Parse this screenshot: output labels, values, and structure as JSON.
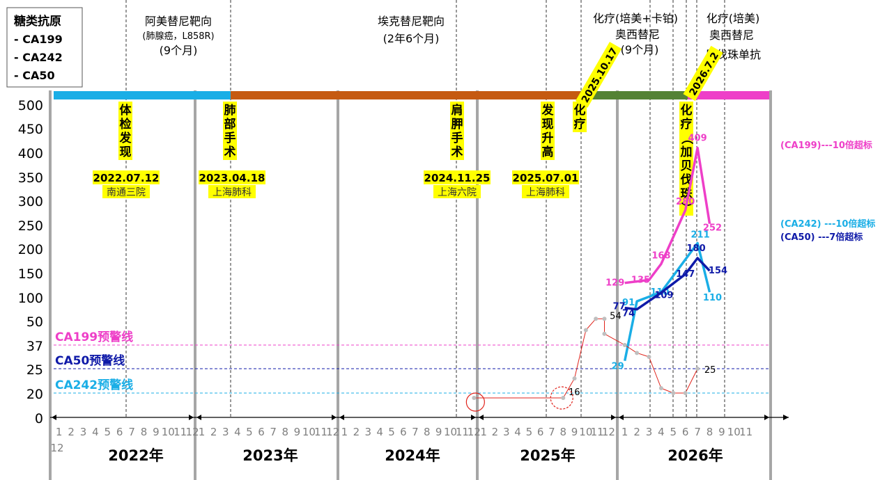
{
  "legend": {
    "title": "糖类抗原",
    "items": [
      "- CA199",
      "- CA242",
      "- CA50"
    ]
  },
  "phases": [
    {
      "name": "阿美替尼靶向",
      "sub": "(肺腺癌，L858R)",
      "duration": "(9个月)",
      "color": "#1aaee6"
    },
    {
      "name": "埃克替尼靶向",
      "sub": "",
      "duration": "(2年6个月)",
      "color": "#c55a11"
    },
    {
      "name": "化疗(培美+卡铂)",
      "sub": "奥西替尼",
      "duration": "(9个月)",
      "color": "#548235"
    },
    {
      "name": "化疗(培美)",
      "sub": "奥西替尼",
      "duration": "贝伐珠单抗",
      "color": "#ee3fc8"
    }
  ],
  "dates_rotated": [
    "2025.10.17",
    "2026.7.2"
  ],
  "events": [
    {
      "label": "体检发现",
      "date": "2022.07.12",
      "place": "南通三院"
    },
    {
      "label": "肺部手术",
      "date": "2023.04.18",
      "place": "上海肺科"
    },
    {
      "label": "肩胛手术",
      "date": "2024.11.25",
      "place": "上海六院"
    },
    {
      "label": "发现升高",
      "date": "2025.07.01",
      "place": "上海肺科"
    },
    {
      "label": "化疗",
      "date": "",
      "place": ""
    },
    {
      "label": "化疗（加贝伐珠）",
      "date": "",
      "place": ""
    }
  ],
  "annotations": {
    "ca199_note": "(CA199)---10倍超标",
    "ca242_note": "(CA242) ---10倍超标",
    "ca50_note": "(CA50) ---7倍超标"
  },
  "colors": {
    "ca199": "#ee3fc8",
    "ca242": "#1aaee6",
    "ca50": "#0f1aa8",
    "gray_series": "#e0231b",
    "highlight": "#ffff00"
  },
  "chart_data": {
    "type": "line",
    "x_unit": "month",
    "ytick_labels": [
      "500",
      "450",
      "400",
      "350",
      "300",
      "250",
      "200",
      "150",
      "100",
      "50",
      "37",
      "25",
      "20",
      "0"
    ],
    "years": [
      "2022年",
      "2023年",
      "2024年",
      "2025年",
      "2026年"
    ],
    "month_ticks": {
      "2022": [
        "1",
        "2",
        "3",
        "4",
        "5",
        "6",
        "7",
        "8",
        "9",
        "10",
        "11",
        "12"
      ],
      "2023": [
        "1",
        "2",
        "3",
        "4",
        "5",
        "6",
        "7",
        "8",
        "9",
        "10",
        "11",
        "12"
      ],
      "2024": [
        "1",
        "2",
        "3",
        "4",
        "5",
        "6",
        "7",
        "8",
        "9",
        "10",
        "11",
        "12"
      ],
      "2025": [
        "1",
        "2",
        "3",
        "4",
        "5",
        "6",
        "7",
        "8",
        "9",
        "10",
        "11",
        "12"
      ],
      "2026": [
        "1",
        "2",
        "3",
        "4",
        "5",
        "6",
        "7",
        "8",
        "9",
        "10",
        "11"
      ]
    },
    "extra_tick": "12",
    "warning_lines": [
      {
        "name": "CA199预警线",
        "value": "37",
        "color": "#ee3fc8"
      },
      {
        "name": "CA50预警线",
        "value": "25",
        "color": "#0f1aa8"
      },
      {
        "name": "CA242预警线",
        "value": "20",
        "color": "#1aaee6"
      }
    ],
    "series": [
      {
        "key": "ca199",
        "color": "#ee3fc8",
        "points": [
          {
            "x": "2026-01",
            "y": "129",
            "label": "129"
          },
          {
            "x": "2026-03",
            "y": "135",
            "label": "135"
          },
          {
            "x": "2026-04",
            "y": "168",
            "label": "168"
          },
          {
            "x": "2026-06",
            "y": "280",
            "label": "280"
          },
          {
            "x": "2026-07",
            "y": "409",
            "label": "409"
          },
          {
            "x": "2026-08",
            "y": "252",
            "label": "252"
          }
        ]
      },
      {
        "key": "ca242",
        "color": "#1aaee6",
        "points": [
          {
            "x": "2026-01",
            "y": "29",
            "label": "29"
          },
          {
            "x": "2026-02",
            "y": "91",
            "label": "91"
          },
          {
            "x": "2026-04",
            "y": "110",
            "label": "110"
          },
          {
            "x": "2026-07",
            "y": "211",
            "label": "211"
          },
          {
            "x": "2026-08",
            "y": "110",
            "label": "110"
          }
        ]
      },
      {
        "key": "ca50",
        "color": "#0f1aa8",
        "points": [
          {
            "x": "2026-01",
            "y": "77",
            "label": "77"
          },
          {
            "x": "2026-02",
            "y": "74",
            "label": "74"
          },
          {
            "x": "2026-04",
            "y": "109",
            "label": "109"
          },
          {
            "x": "2026-06",
            "y": "147",
            "label": "147"
          },
          {
            "x": "2026-07",
            "y": "180",
            "label": "180"
          },
          {
            "x": "2026-08",
            "y": "154",
            "label": "154"
          }
        ]
      },
      {
        "key": "gray",
        "color": "#e0231b",
        "points": [
          {
            "x": "2024-12",
            "y": "16",
            "label": ""
          },
          {
            "x": "2025-08",
            "y": "16",
            "label": "16"
          },
          {
            "x": "2025-09",
            "y": "23",
            "label": ""
          },
          {
            "x": "2025-10",
            "y": "45",
            "label": ""
          },
          {
            "x": "2025-11",
            "y": "54",
            "label": ""
          },
          {
            "x": "2025-12",
            "y": "54",
            "label": "54"
          },
          {
            "x": "2025-12",
            "y": "43",
            "label": ""
          },
          {
            "x": "2026-01",
            "y": "37",
            "label": ""
          },
          {
            "x": "2026-02",
            "y": "33",
            "label": ""
          },
          {
            "x": "2026-03",
            "y": "31",
            "label": ""
          },
          {
            "x": "2026-04",
            "y": "21",
            "label": ""
          },
          {
            "x": "2026-05",
            "y": "20",
            "label": ""
          },
          {
            "x": "2026-06",
            "y": "20",
            "label": ""
          },
          {
            "x": "2026-07",
            "y": "25",
            "label": "25"
          }
        ]
      }
    ]
  }
}
